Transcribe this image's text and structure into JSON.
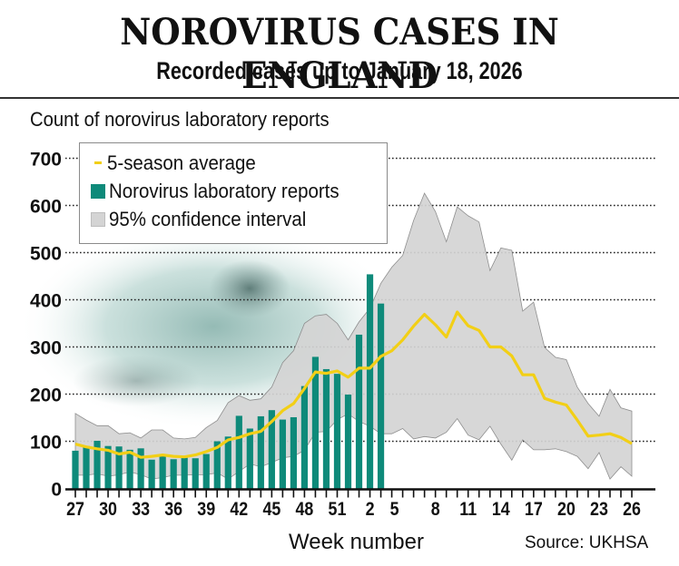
{
  "header": {
    "title": "NOROVIRUS CASES IN ENGLAND",
    "subtitle": "Recorded cases up to January 18, 2026"
  },
  "colors": {
    "bars": "#0e8a7a",
    "average": "#f2cf16",
    "ci_fill": "#d4d4d4",
    "ci_stroke": "#8e8e8e",
    "grid": "#222222",
    "photo_tint": "#b9d6d1"
  },
  "legend": {
    "items": [
      {
        "label": "5-season average",
        "swatch": "line",
        "color": "#f2cf16"
      },
      {
        "label": "Norovirus laboratory reports",
        "swatch": "box",
        "color": "#0e8a7a"
      },
      {
        "label": "95% confidence interval",
        "swatch": "box",
        "color": "#d4d4d4"
      }
    ]
  },
  "footer": {
    "xlabel": "Week number",
    "source": "Source: UKHSA"
  },
  "chart_data": {
    "type": "bar",
    "title": "Norovirus cases in England",
    "subtitle": "Recorded cases up to January 18, 2026",
    "xlabel": "Week number",
    "ylabel": "Count of norovirus laboratory reports",
    "ylim": [
      0,
      700
    ],
    "yticks": [
      0,
      100,
      200,
      300,
      400,
      500,
      600,
      700
    ],
    "grid": true,
    "legend_position": "top-left",
    "weeks": [
      27,
      28,
      29,
      30,
      31,
      32,
      33,
      34,
      35,
      36,
      37,
      38,
      39,
      40,
      41,
      42,
      43,
      44,
      45,
      46,
      47,
      48,
      49,
      50,
      51,
      52,
      1,
      2,
      3,
      4,
      5,
      6,
      7,
      8,
      9,
      10,
      11,
      12,
      13,
      14,
      15,
      16,
      17,
      18,
      19,
      20,
      21,
      22,
      23,
      24,
      25,
      26
    ],
    "xtick_labels": [
      "27",
      "30",
      "33",
      "36",
      "39",
      "42",
      "45",
      "48",
      "51",
      "2",
      "5",
      "8",
      "11",
      "14",
      "17",
      "20",
      "23",
      "26"
    ],
    "series": [
      {
        "name": "Norovirus laboratory reports",
        "type": "bar",
        "values": [
          80,
          90,
          101,
          90,
          89,
          82,
          85,
          61,
          69,
          62,
          65,
          64,
          73,
          100,
          110,
          154,
          127,
          153,
          166,
          146,
          151,
          217,
          279,
          253,
          243,
          199,
          326,
          454,
          392,
          null,
          null,
          null,
          null,
          null,
          null,
          null,
          null,
          null,
          null,
          null,
          null,
          null,
          null,
          null,
          null,
          null,
          null,
          null,
          null,
          null,
          null,
          null
        ]
      },
      {
        "name": "5-season average",
        "type": "line",
        "values": [
          94,
          88,
          84,
          81,
          73,
          77,
          66,
          68,
          71,
          68,
          67,
          71,
          78,
          87,
          103,
          108,
          116,
          121,
          142,
          165,
          180,
          212,
          247,
          244,
          249,
          236,
          255,
          255,
          280,
          292,
          315,
          344,
          369,
          347,
          321,
          374,
          345,
          335,
          300,
          300,
          281,
          241,
          241,
          191,
          183,
          177,
          145,
          111,
          113,
          116,
          108,
          95
        ]
      },
      {
        "name": "95% confidence interval (upper)",
        "type": "area-upper",
        "values": [
          159,
          145,
          133,
          133,
          116,
          118,
          107,
          124,
          124,
          107,
          105,
          108,
          129,
          144,
          182,
          197,
          187,
          190,
          215,
          267,
          292,
          350,
          366,
          369,
          350,
          315,
          353,
          382,
          435,
          469,
          494,
          568,
          626,
          587,
          523,
          597,
          578,
          565,
          462,
          510,
          505,
          376,
          395,
          299,
          278,
          273,
          215,
          180,
          153,
          210,
          171,
          164
        ]
      },
      {
        "name": "95% confidence interval (lower)",
        "type": "area-lower",
        "values": [
          28,
          28,
          31,
          26,
          29,
          35,
          29,
          20,
          23,
          28,
          28,
          29,
          29,
          33,
          20,
          36,
          52,
          46,
          55,
          65,
          68,
          81,
          119,
          121,
          146,
          158,
          142,
          132,
          116,
          116,
          127,
          105,
          110,
          107,
          119,
          148,
          113,
          103,
          132,
          94,
          60,
          103,
          82,
          82,
          84,
          78,
          68,
          42,
          76,
          20,
          46,
          26
        ]
      }
    ]
  }
}
